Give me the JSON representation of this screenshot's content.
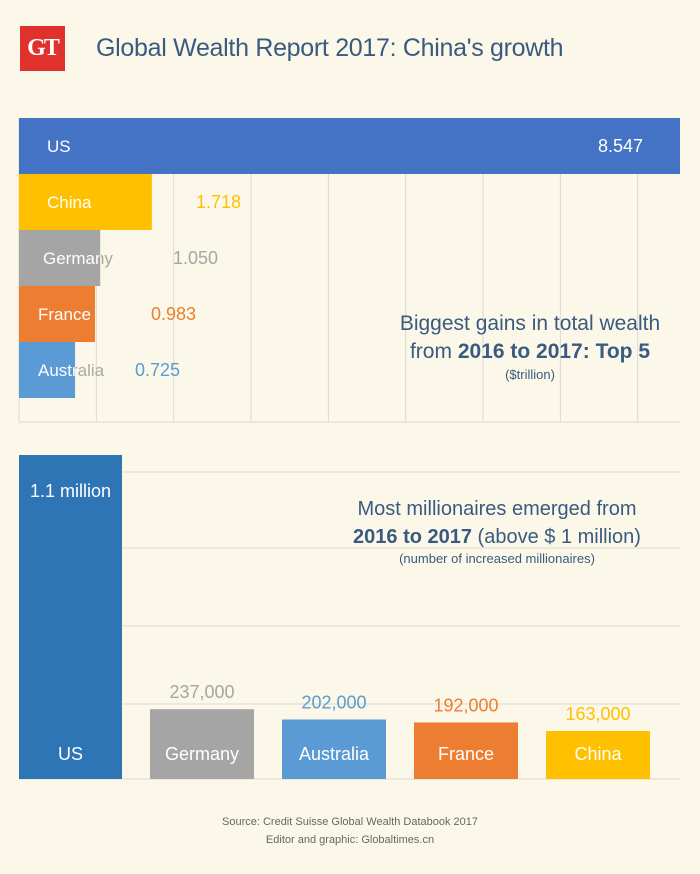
{
  "header": {
    "logo_text": "GT",
    "title": "Global Wealth Report 2017: China's growth"
  },
  "chart_data": [
    {
      "type": "bar",
      "orientation": "horizontal",
      "title": "Biggest gains in total wealth from 2016 to 2017: Top 5",
      "title_line1": "Biggest gains in total wealth",
      "title_line2_a": "from ",
      "title_line2_b": "2016 to 2017: Top 5",
      "unit_label": "($trillion)",
      "categories": [
        "US",
        "China",
        "Germany",
        "France",
        "Australia"
      ],
      "values": [
        8.547,
        1.718,
        1.05,
        0.983,
        0.725
      ],
      "value_labels": [
        "8.547",
        "1.718",
        "1.050",
        "0.983",
        "0.725"
      ],
      "colors": [
        "#4472C4",
        "#FFC000",
        "#A5A5A5",
        "#ED7D31",
        "#5B9BD5"
      ],
      "xlim": [
        0,
        8.547
      ],
      "grid_step": 1,
      "grid": true
    },
    {
      "type": "bar",
      "orientation": "vertical",
      "title": "Most millionaires emerged from 2016 to 2017 (above $ 1 million)",
      "title_line1": "Most millionaires emerged from",
      "title_line2_a": "2016 to 2017",
      "title_line2_b": " (above $ 1 million)",
      "unit_label": "(number of increased millionaires)",
      "categories": [
        "US",
        "Germany",
        "Australia",
        "France",
        "China"
      ],
      "values": [
        1100000,
        237000,
        202000,
        192000,
        163000
      ],
      "value_labels": [
        "1.1 million",
        "237,000",
        "202,000",
        "192,000",
        "163,000"
      ],
      "colors": [
        "#2E75B6",
        "#A5A5A5",
        "#5B9BD5",
        "#ED7D31",
        "#FFC000"
      ],
      "ylim": [
        0,
        1100000
      ],
      "grid": true
    }
  ],
  "footer": {
    "source": "Source: Credit Suisse Global Wealth Databook 2017",
    "credit": "Editor and graphic: Globaltimes.cn"
  }
}
